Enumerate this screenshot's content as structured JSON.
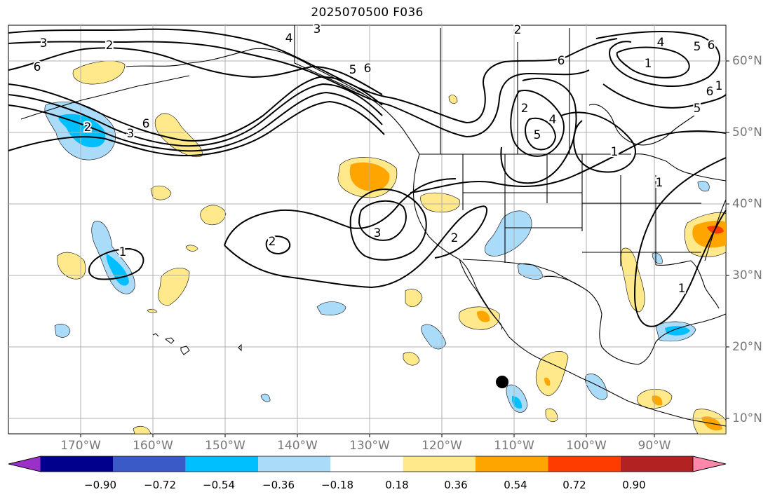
{
  "title": "2025070500 F036",
  "lat_labels": [
    "60°N",
    "50°N",
    "40°N",
    "30°N",
    "20°N",
    "10°N"
  ],
  "lon_labels": [
    "170°W",
    "160°W",
    "150°W",
    "140°W",
    "130°W",
    "120°W",
    "110°W",
    "100°W",
    "90°W"
  ],
  "colorbar": {
    "ticks": [
      "−0.90",
      "−0.72",
      "−0.54",
      "−0.36",
      "−0.18",
      "0.18",
      "0.36",
      "0.54",
      "0.72",
      "0.90"
    ],
    "colors": [
      "#9a30c8",
      "#00008c",
      "#3a5ac8",
      "#00bfff",
      "#aadcfa",
      "#ffffff",
      "#ffe98a",
      "#ffa500",
      "#ff3c00",
      "#b22222",
      "#ff88aa"
    ]
  },
  "contour_labels": [
    "3",
    "2",
    "6",
    "4",
    "3",
    "2",
    "6",
    "5",
    "6",
    "2",
    "3",
    "6",
    "2",
    "4",
    "5",
    "1",
    "1",
    "2",
    "3",
    "2",
    "1",
    "1",
    "1",
    "6",
    "5",
    "4",
    "6",
    "1",
    "5"
  ],
  "colors": {
    "axis_label": "#777777",
    "grid": "#b0b0b0"
  }
}
